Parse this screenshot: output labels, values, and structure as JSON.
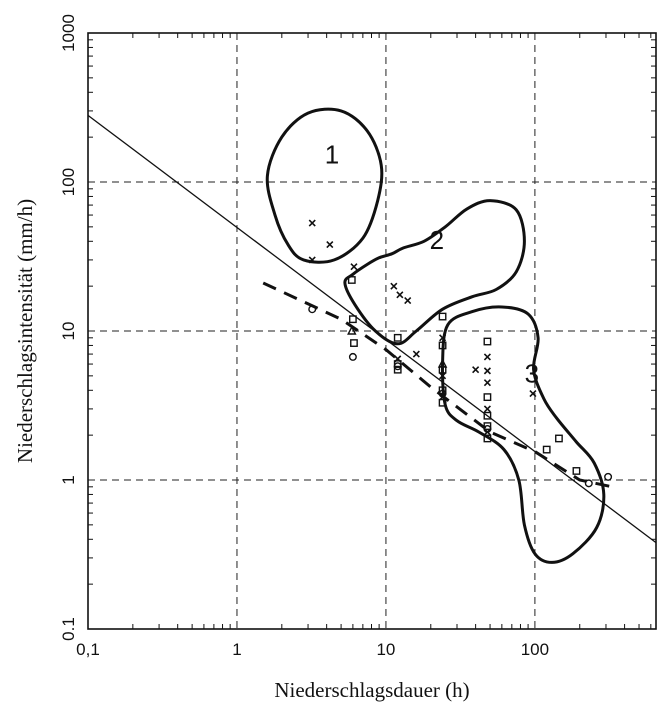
{
  "chart_data": {
    "type": "scatter",
    "xlabel": "Niederschlagsdauer (h)",
    "ylabel": "Niederschlagsintensität (mm/h)",
    "x_scale": "log",
    "y_scale": "log",
    "xlim": [
      0.1,
      650
    ],
    "ylim": [
      0.1,
      1000
    ],
    "grid": true,
    "x_ticks": [
      {
        "value": 0.1,
        "label": "0,1"
      },
      {
        "value": 1,
        "label": "1"
      },
      {
        "value": 10,
        "label": "10"
      },
      {
        "value": 100,
        "label": "100"
      }
    ],
    "y_ticks": [
      {
        "value": 0.1,
        "label": "0.1"
      },
      {
        "value": 1,
        "label": "1"
      },
      {
        "value": 10,
        "label": "10"
      },
      {
        "value": 100,
        "label": "100"
      },
      {
        "value": 1000,
        "label": "1000"
      }
    ],
    "lines": [
      {
        "style": "solid",
        "points": [
          [
            0.1,
            280
          ],
          [
            650,
            0.38
          ]
        ]
      },
      {
        "style": "dashed",
        "points": [
          [
            1.5,
            21
          ],
          [
            5,
            12
          ],
          [
            10,
            7.5
          ],
          [
            20,
            4.2
          ],
          [
            50,
            2.1
          ],
          [
            100,
            1.55
          ],
          [
            200,
            1.0
          ],
          [
            330,
            0.9
          ]
        ]
      }
    ],
    "regions": [
      {
        "label": "1",
        "boundary": [
          [
            2.2,
            38
          ],
          [
            2.8,
            30
          ],
          [
            4.5,
            30
          ],
          [
            7.0,
            42
          ],
          [
            8.8,
            75
          ],
          [
            9.3,
            130
          ],
          [
            7.5,
            220
          ],
          [
            5.0,
            300
          ],
          [
            3.0,
            290
          ],
          [
            2.0,
            200
          ],
          [
            1.6,
            110
          ],
          [
            1.8,
            60
          ]
        ]
      },
      {
        "label": "2",
        "boundary": [
          [
            6.2,
            15
          ],
          [
            8.5,
            10
          ],
          [
            12,
            8.2
          ],
          [
            16,
            10
          ],
          [
            24,
            14
          ],
          [
            38,
            17
          ],
          [
            55,
            19
          ],
          [
            75,
            25
          ],
          [
            85,
            40
          ],
          [
            75,
            65
          ],
          [
            50,
            75
          ],
          [
            35,
            66
          ],
          [
            25,
            50
          ],
          [
            18,
            40
          ],
          [
            13,
            36
          ],
          [
            11,
            33
          ],
          [
            9,
            31
          ],
          [
            7.5,
            28
          ],
          [
            6.0,
            24
          ],
          [
            5.3,
            21
          ]
        ]
      },
      {
        "label": "3",
        "boundary": [
          [
            25,
            3.2
          ],
          [
            24,
            6.2
          ],
          [
            26,
            11
          ],
          [
            38,
            13.5
          ],
          [
            60,
            14.5
          ],
          [
            90,
            13
          ],
          [
            105,
            9
          ],
          [
            98,
            5.5
          ],
          [
            115,
            3.5
          ],
          [
            140,
            2.6
          ],
          [
            190,
            1.8
          ],
          [
            250,
            1.3
          ],
          [
            290,
            0.8
          ],
          [
            260,
            0.48
          ],
          [
            180,
            0.32
          ],
          [
            130,
            0.28
          ],
          [
            100,
            0.32
          ],
          [
            85,
            0.5
          ],
          [
            78,
            1.0
          ],
          [
            62,
            1.6
          ],
          [
            42,
            2.1
          ],
          [
            30,
            2.5
          ]
        ]
      }
    ],
    "series": [
      {
        "marker": "x",
        "points": [
          [
            3.2,
            53
          ],
          [
            4.2,
            38
          ],
          [
            3.2,
            30
          ],
          [
            6.1,
            27
          ],
          [
            11.3,
            20
          ],
          [
            12.4,
            17.5
          ],
          [
            14,
            16
          ],
          [
            12,
            6.5
          ],
          [
            16,
            7
          ],
          [
            24,
            9
          ],
          [
            24,
            5
          ],
          [
            24,
            3.6
          ],
          [
            40,
            5.5
          ],
          [
            48,
            6.7
          ],
          [
            48,
            5.4
          ],
          [
            48,
            4.5
          ],
          [
            48,
            3
          ],
          [
            48,
            2.1
          ],
          [
            97,
            3.8
          ]
        ]
      },
      {
        "marker": "square",
        "points": [
          [
            5.9,
            22
          ],
          [
            6.0,
            12
          ],
          [
            6.1,
            8.3
          ],
          [
            12,
            9
          ],
          [
            12,
            6
          ],
          [
            12,
            5.5
          ],
          [
            24,
            12.5
          ],
          [
            24,
            8
          ],
          [
            24,
            5.5
          ],
          [
            24,
            4
          ],
          [
            24,
            3.3
          ],
          [
            48,
            8.5
          ],
          [
            48,
            3.6
          ],
          [
            48,
            2.7
          ],
          [
            48,
            2.3
          ],
          [
            48,
            1.9
          ],
          [
            120,
            1.6
          ],
          [
            145,
            1.9
          ],
          [
            190,
            1.15
          ]
        ]
      },
      {
        "marker": "circle",
        "points": [
          [
            3.2,
            14
          ],
          [
            6.0,
            6.7
          ],
          [
            12,
            5.8
          ],
          [
            24,
            3.8
          ],
          [
            48,
            2.2
          ],
          [
            230,
            0.95
          ],
          [
            310,
            1.05
          ]
        ]
      },
      {
        "marker": "triangle",
        "points": [
          [
            5.9,
            10
          ],
          [
            24,
            6
          ]
        ]
      }
    ]
  }
}
